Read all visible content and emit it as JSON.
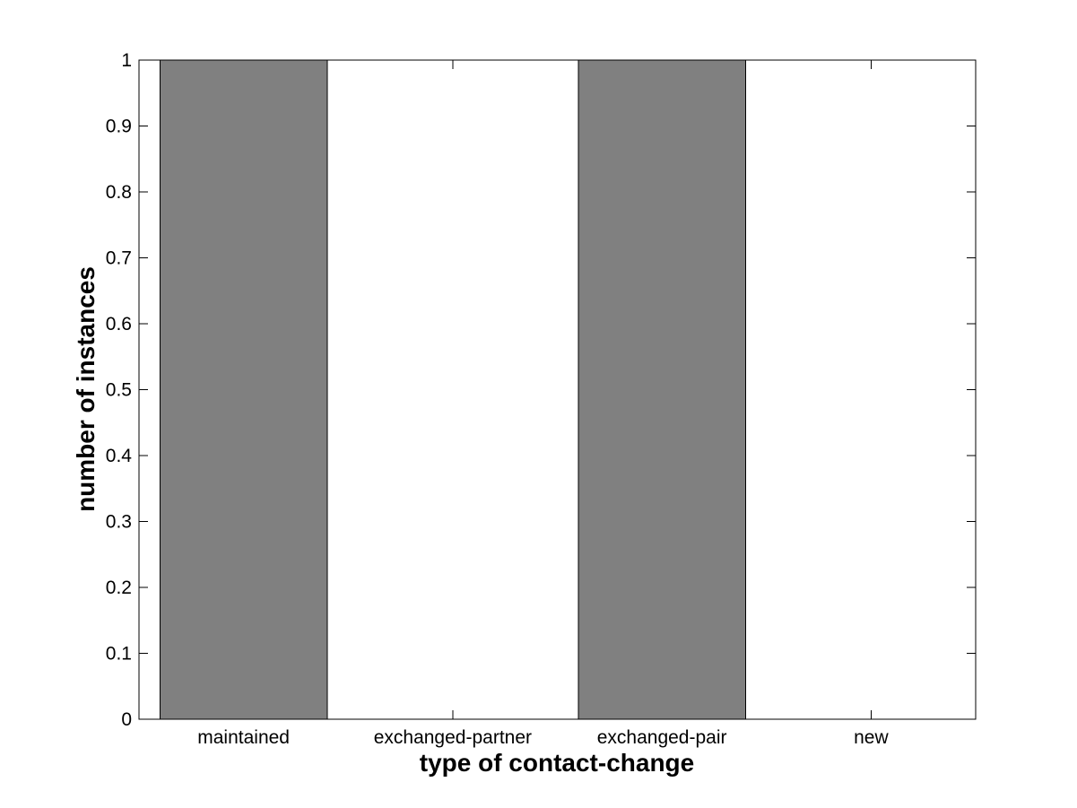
{
  "chart_data": {
    "type": "bar",
    "title": "",
    "categories": [
      "maintained",
      "exchanged-partner",
      "exchanged-pair",
      "new"
    ],
    "values": [
      1,
      0,
      1,
      0
    ],
    "xlabel": "type of contact-change",
    "ylabel": "number of instances",
    "xlim": [
      0.5,
      4.5
    ],
    "ylim": [
      0,
      1
    ],
    "yticks": [
      0,
      0.1,
      0.2,
      0.3,
      0.4,
      0.5,
      0.6,
      0.7,
      0.8,
      0.9,
      1
    ],
    "ytick_labels": [
      "0",
      "0.1",
      "0.2",
      "0.3",
      "0.4",
      "0.5",
      "0.6",
      "0.7",
      "0.8",
      "0.9",
      "1"
    ],
    "bar_width": 0.8,
    "bar_color": "#808080",
    "bar_edge_color": "#000000",
    "axis_color": "#000000",
    "background": "#ffffff",
    "grid": false,
    "legend": null,
    "tick_direction": "in",
    "box": true
  }
}
